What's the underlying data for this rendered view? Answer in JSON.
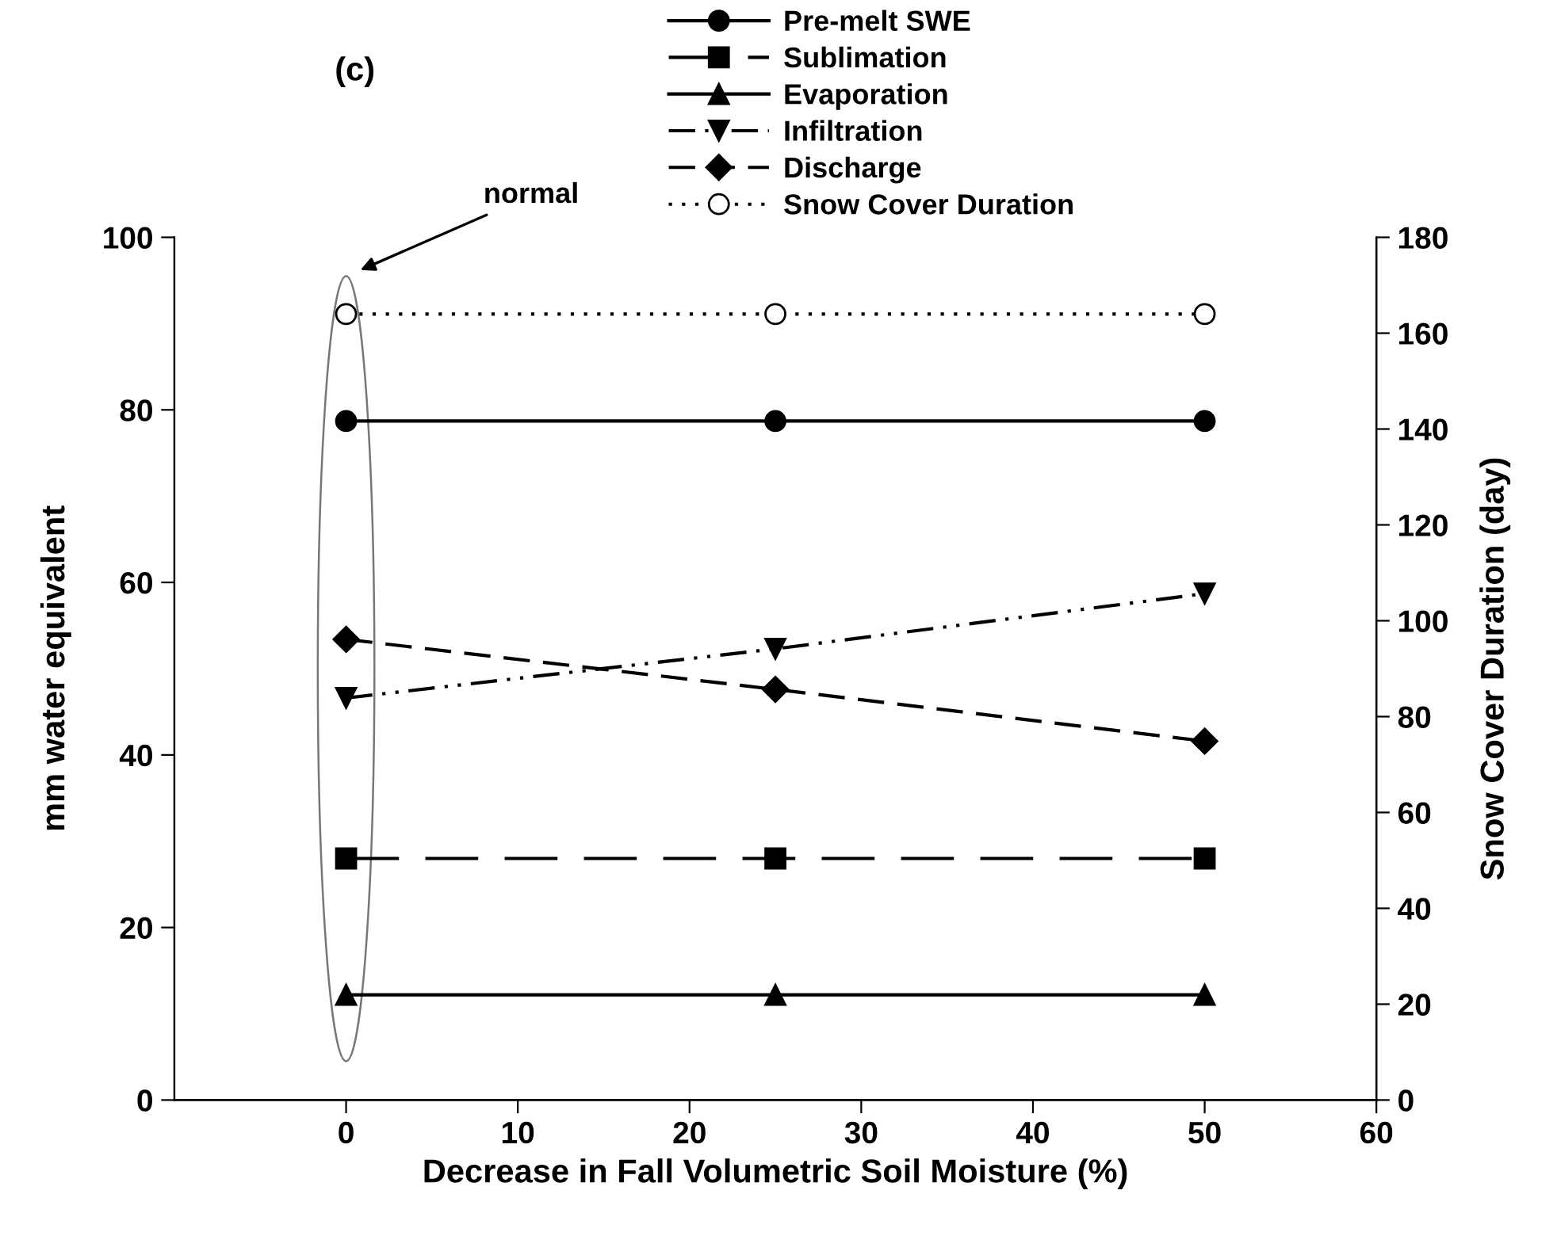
{
  "chart_data": {
    "type": "line",
    "title": "(c)",
    "xlabel": "Decrease in Fall Volumetric Soil Moisture (%)",
    "ylabel": "mm water equivalent",
    "y2label": "Snow Cover Duration (day)",
    "x": [
      0,
      25,
      50
    ],
    "series": [
      {
        "name": "Pre-melt SWE",
        "color": "#000000",
        "values": [
          78.7,
          78.7,
          78.7
        ],
        "marker": "circle",
        "line_style": "solid"
      },
      {
        "name": "Sublimation",
        "color": "#000000",
        "values": [
          28,
          28,
          28
        ],
        "marker": "square",
        "line_style": "longdash"
      },
      {
        "name": "Evaporation",
        "color": "#000000",
        "values": [
          12.2,
          12.2,
          12.2
        ],
        "marker": "triangle",
        "line_style": "solid"
      },
      {
        "name": "Infiltration",
        "color": "#000000",
        "values": [
          46.6,
          52.3,
          58.7
        ],
        "marker": "triangle_down",
        "line_style": "dashdotdot"
      },
      {
        "name": "Discharge",
        "color": "#000000",
        "values": [
          53.4,
          47.6,
          41.6
        ],
        "marker": "diamond",
        "line_style": "dashed"
      },
      {
        "name": "Snow Cover Duration",
        "color": "#000000",
        "values": [
          164,
          164,
          164
        ],
        "marker": "open_circle",
        "line_style": "dotted",
        "axis": "y2"
      }
    ],
    "xlim": [
      -10,
      60
    ],
    "xticks": [
      0,
      10,
      20,
      30,
      40,
      50,
      60
    ],
    "ylim": [
      0,
      100
    ],
    "yticks": [
      0,
      20,
      40,
      60,
      80,
      100
    ],
    "y2lim": [
      0,
      180
    ],
    "y2ticks": [
      0,
      20,
      40,
      60,
      80,
      100,
      120,
      140,
      160,
      180
    ],
    "annotations": [
      "normal"
    ],
    "legend": "top",
    "grid": false
  }
}
